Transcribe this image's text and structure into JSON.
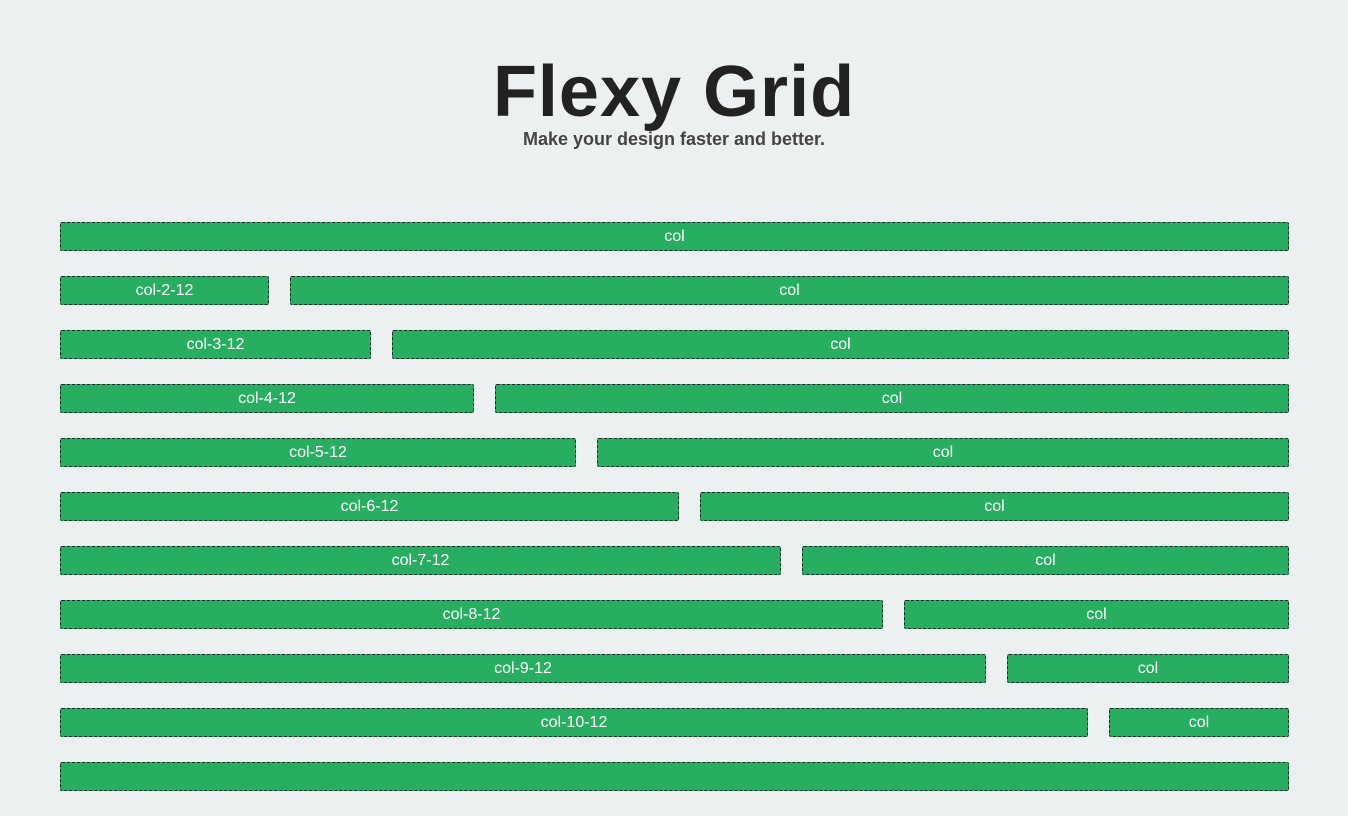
{
  "header": {
    "title": "Flexy Grid",
    "subtitle": "Make your design faster and better."
  },
  "grid": {
    "cell_color": "#27ae60",
    "rows": [
      {
        "cells": [
          "col"
        ]
      },
      {
        "cells": [
          "col-2-12",
          "col"
        ]
      },
      {
        "cells": [
          "col-3-12",
          "col"
        ]
      },
      {
        "cells": [
          "col-4-12",
          "col"
        ]
      },
      {
        "cells": [
          "col-5-12",
          "col"
        ]
      },
      {
        "cells": [
          "col-6-12",
          "col"
        ]
      },
      {
        "cells": [
          "col-7-12",
          "col"
        ]
      },
      {
        "cells": [
          "col-8-12",
          "col"
        ]
      },
      {
        "cells": [
          "col-9-12",
          "col"
        ]
      },
      {
        "cells": [
          "col-10-12",
          "col"
        ]
      },
      {
        "cells": [
          ""
        ]
      }
    ]
  }
}
